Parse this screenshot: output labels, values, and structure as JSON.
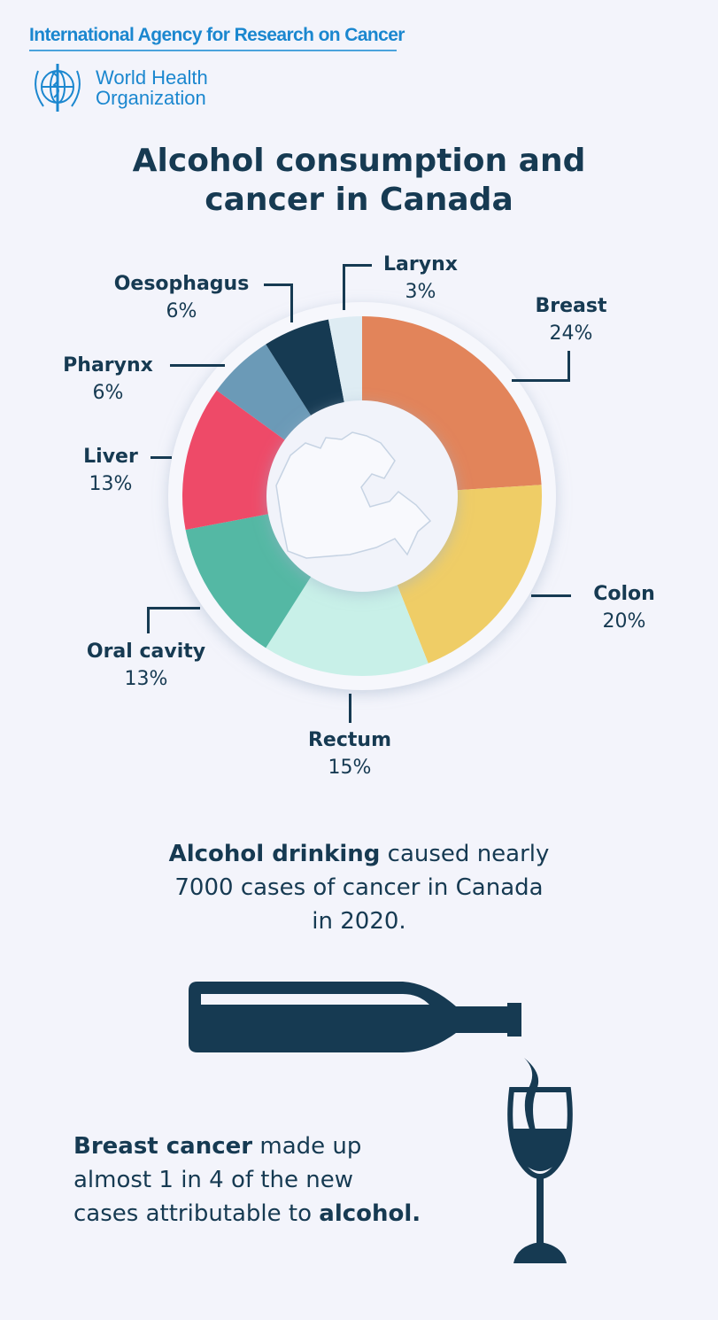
{
  "header": {
    "org": "International Agency for Research on Cancer",
    "who_line1": "World Health",
    "who_line2": "Organization"
  },
  "title_line1": "Alcohol consumption and",
  "title_line2": "cancer in Canada",
  "chart_data": {
    "type": "pie",
    "donut": true,
    "categories": [
      "Breast",
      "Colon",
      "Rectum",
      "Oral cavity",
      "Liver",
      "Pharynx",
      "Oesophagus",
      "Larynx"
    ],
    "values": [
      24,
      20,
      15,
      13,
      13,
      6,
      6,
      3
    ],
    "labels": [
      "24%",
      "20%",
      "15%",
      "13%",
      "13%",
      "6%",
      "6%",
      "3%"
    ],
    "colors": [
      "#e2845a",
      "#efcd66",
      "#c8f0e8",
      "#54b8a4",
      "#ee4a68",
      "#6b9ab7",
      "#163a52",
      "#deecf3"
    ],
    "start": "top",
    "direction": "clockwise"
  },
  "facts": {
    "line1_bold": "Alcohol drinking",
    "line1_rest": " caused nearly",
    "line2": "7000 cases of cancer in Canada",
    "line3": "in 2020.",
    "b1_bold": "Breast cancer",
    "b1_rest": " made up",
    "b2": "almost 1 in 4 of the new",
    "b3_pre": "cases attributable to ",
    "b3_bold": "alcohol."
  }
}
